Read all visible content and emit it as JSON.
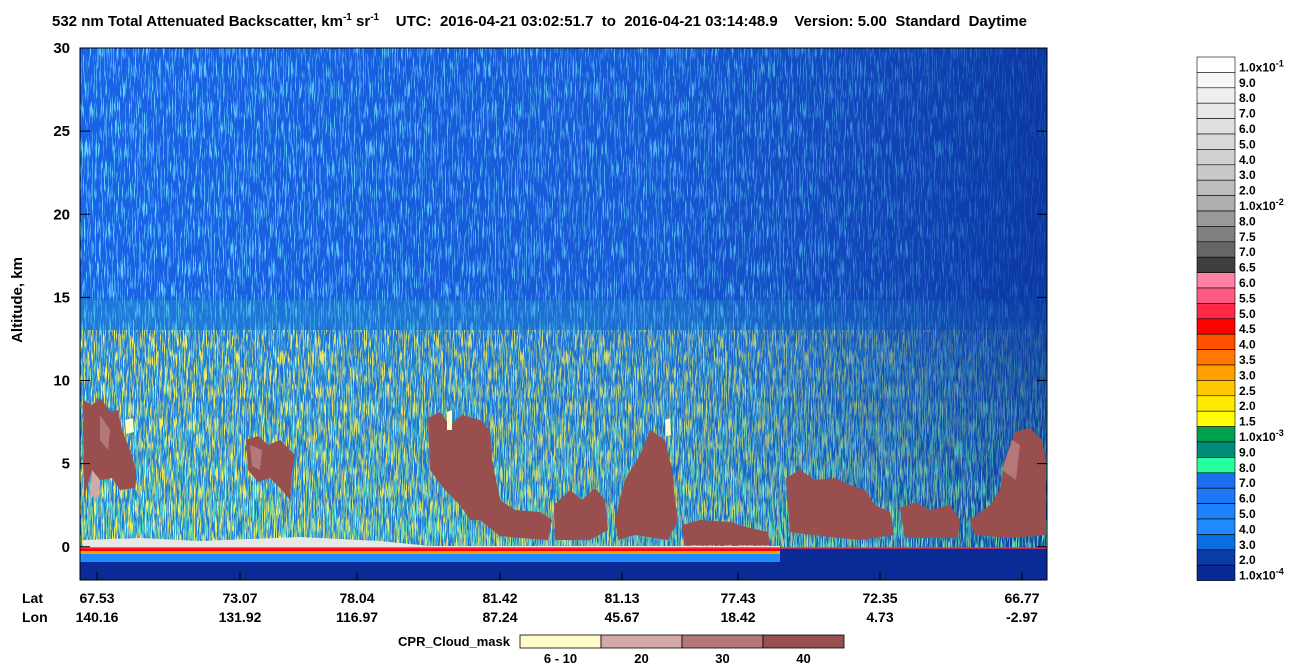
{
  "chart_data": {
    "type": "curtain",
    "title": {
      "main": "532 nm Total Attenuated Backscatter, km",
      "exp1": "-1",
      "unit2": "sr",
      "exp2": "-1"
    },
    "time": "UTC:  2016-04-21 03:02:51.7  to  2016-04-21 03:14:48.9",
    "version": "Version: 5.00  Standard  Daytime",
    "ylabel": "Altitude, km",
    "ylim": [
      -2,
      30
    ],
    "yticks": [
      0,
      5,
      10,
      15,
      20,
      25,
      30
    ],
    "x_row_labels": [
      "Lat",
      "Lon"
    ],
    "lat": [
      "67.53",
      "73.07",
      "78.04",
      "81.42",
      "81.13",
      "77.43",
      "72.35",
      "66.77"
    ],
    "lon": [
      "140.16",
      "131.92",
      "116.97",
      "87.24",
      "45.67",
      "18.42",
      "4.73",
      "-2.97"
    ],
    "colorbar": [
      {
        "label": "1.0x10",
        "exp": "-1",
        "color": "#ffffff"
      },
      {
        "label": "9.0",
        "color": "#f7f7f7"
      },
      {
        "label": "8.0",
        "color": "#efefef"
      },
      {
        "label": "7.0",
        "color": "#e8e8e8"
      },
      {
        "label": "6.0",
        "color": "#e0e0e0"
      },
      {
        "label": "5.0",
        "color": "#d9d9d9"
      },
      {
        "label": "4.0",
        "color": "#d1d1d1"
      },
      {
        "label": "3.0",
        "color": "#c9c9c9"
      },
      {
        "label": "2.0",
        "color": "#bdbdbd"
      },
      {
        "label": "1.0x10",
        "exp": "-2",
        "color": "#aeaeae"
      },
      {
        "label": "8.0",
        "color": "#999999"
      },
      {
        "label": "7.5",
        "color": "#808080"
      },
      {
        "label": "7.0",
        "color": "#666666"
      },
      {
        "label": "6.5",
        "color": "#3f3f3f"
      },
      {
        "label": "6.0",
        "color": "#ff82a5"
      },
      {
        "label": "5.5",
        "color": "#ff5a82"
      },
      {
        "label": "5.0",
        "color": "#ff2846"
      },
      {
        "label": "4.5",
        "color": "#ff0000"
      },
      {
        "label": "4.0",
        "color": "#ff5000"
      },
      {
        "label": "3.5",
        "color": "#ff7800"
      },
      {
        "label": "3.0",
        "color": "#ffa000"
      },
      {
        "label": "2.5",
        "color": "#ffc800"
      },
      {
        "label": "2.0",
        "color": "#ffeb00"
      },
      {
        "label": "1.5",
        "color": "#ffff00"
      },
      {
        "label": "1.0x10",
        "exp": "-3",
        "color": "#00a050"
      },
      {
        "label": "9.0",
        "color": "#008c78"
      },
      {
        "label": "8.0",
        "color": "#28ffa0"
      },
      {
        "label": "7.0",
        "color": "#1e6ef0"
      },
      {
        "label": "6.0",
        "color": "#1e78f5"
      },
      {
        "label": "5.0",
        "color": "#1e82fa"
      },
      {
        "label": "4.0",
        "color": "#1e8cff"
      },
      {
        "label": "3.0",
        "color": "#0a6ee0"
      },
      {
        "label": "2.0",
        "color": "#0a3ca5"
      },
      {
        "label": "1.0x10",
        "exp": "-4",
        "color": "#0a2896"
      }
    ],
    "cpr_legend": {
      "title": "CPR_Cloud_mask",
      "items": [
        {
          "label": "6 - 10",
          "color": "#fffcc8"
        },
        {
          "label": "20",
          "color": "#d2a8a8"
        },
        {
          "label": "30",
          "color": "#b47878"
        },
        {
          "label": "40",
          "color": "#9a4f4f"
        }
      ]
    }
  }
}
